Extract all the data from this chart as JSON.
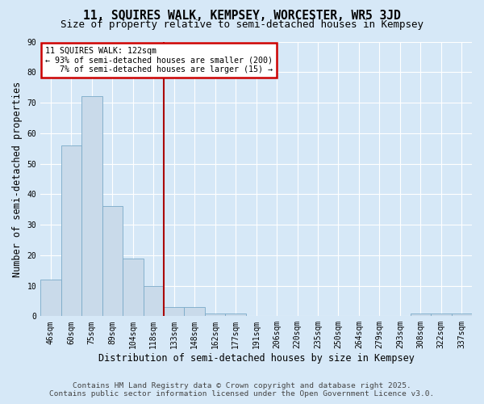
{
  "title1": "11, SQUIRES WALK, KEMPSEY, WORCESTER, WR5 3JD",
  "title2": "Size of property relative to semi-detached houses in Kempsey",
  "xlabel": "Distribution of semi-detached houses by size in Kempsey",
  "ylabel": "Number of semi-detached properties",
  "categories": [
    "46sqm",
    "60sqm",
    "75sqm",
    "89sqm",
    "104sqm",
    "118sqm",
    "133sqm",
    "148sqm",
    "162sqm",
    "177sqm",
    "191sqm",
    "206sqm",
    "220sqm",
    "235sqm",
    "250sqm",
    "264sqm",
    "279sqm",
    "293sqm",
    "308sqm",
    "322sqm",
    "337sqm"
  ],
  "values": [
    12,
    56,
    72,
    36,
    19,
    10,
    3,
    3,
    1,
    1,
    0,
    0,
    0,
    0,
    0,
    0,
    0,
    0,
    1,
    1,
    1
  ],
  "bar_color": "#c9daea",
  "bar_edge_color": "#7aaac8",
  "vline_x_index": 5,
  "vline_color": "#aa0000",
  "annotation_line1": "11 SQUIRES WALK: 122sqm",
  "annotation_line2": "← 93% of semi-detached houses are smaller (200)",
  "annotation_line3": "   7% of semi-detached houses are larger (15) →",
  "annotation_box_color": "#ffffff",
  "annotation_box_edge": "#cc0000",
  "ylim": [
    0,
    90
  ],
  "yticks": [
    0,
    10,
    20,
    30,
    40,
    50,
    60,
    70,
    80,
    90
  ],
  "footnote1": "Contains HM Land Registry data © Crown copyright and database right 2025.",
  "footnote2": "Contains public sector information licensed under the Open Government Licence v3.0.",
  "bg_color": "#d6e8f7",
  "plot_bg_color": "#d6e8f7",
  "grid_color": "#ffffff",
  "title_fontsize": 10.5,
  "subtitle_fontsize": 9,
  "tick_fontsize": 7,
  "label_fontsize": 8.5,
  "footnote_fontsize": 6.8
}
